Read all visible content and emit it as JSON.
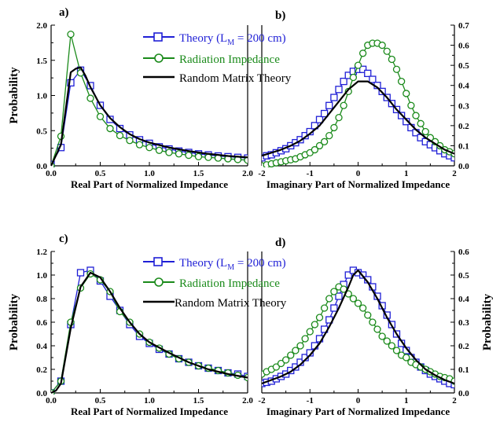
{
  "chart_data": [
    {
      "type": "line",
      "panel_label": "a)",
      "xlabel": "Real Part of Normalized Impedance",
      "ylabel": "Probability",
      "xlim": [
        0,
        2
      ],
      "ylim": [
        0,
        2
      ],
      "xticks": [
        "0.0",
        "0.5",
        "1.0",
        "1.5",
        "2.0"
      ],
      "yticks": [
        "0.0",
        "0.5",
        "1.0",
        "1.5",
        "2.0"
      ],
      "yaxis_side": "left",
      "series": [
        {
          "name": "Theory (LM = 200 cm)",
          "color": "#1f1fd6",
          "marker": "square",
          "x": [
            0,
            0.1,
            0.2,
            0.3,
            0.4,
            0.5,
            0.6,
            0.7,
            0.8,
            0.9,
            1.0,
            1.1,
            1.2,
            1.3,
            1.4,
            1.5,
            1.6,
            1.7,
            1.8,
            1.9,
            2.0
          ],
          "y": [
            0.02,
            0.26,
            1.18,
            1.36,
            1.14,
            0.86,
            0.66,
            0.53,
            0.44,
            0.37,
            0.32,
            0.27,
            0.24,
            0.21,
            0.19,
            0.17,
            0.155,
            0.14,
            0.13,
            0.12,
            0.11
          ]
        },
        {
          "name": "Radiation Impedance",
          "color": "#1a8a1a",
          "marker": "circle",
          "x": [
            0,
            0.1,
            0.2,
            0.3,
            0.4,
            0.5,
            0.6,
            0.7,
            0.8,
            0.9,
            1.0,
            1.1,
            1.2,
            1.3,
            1.4,
            1.5,
            1.6,
            1.7,
            1.8,
            1.9,
            2.0
          ],
          "y": [
            0.0,
            0.42,
            1.87,
            1.32,
            0.96,
            0.7,
            0.53,
            0.43,
            0.36,
            0.3,
            0.26,
            0.22,
            0.19,
            0.17,
            0.15,
            0.13,
            0.12,
            0.11,
            0.1,
            0.09,
            0.08
          ]
        },
        {
          "name": "Random Matrix Theory",
          "color": "#000000",
          "marker": "none",
          "x": [
            0,
            0.1,
            0.2,
            0.25,
            0.3,
            0.35,
            0.4,
            0.5,
            0.6,
            0.7,
            0.8,
            0.9,
            1.0,
            1.2,
            1.4,
            1.6,
            1.8,
            2.0
          ],
          "y": [
            0.0,
            0.3,
            1.33,
            1.38,
            1.4,
            1.28,
            1.12,
            0.86,
            0.68,
            0.55,
            0.45,
            0.38,
            0.33,
            0.26,
            0.21,
            0.17,
            0.14,
            0.12
          ]
        }
      ]
    },
    {
      "type": "line",
      "panel_label": "b)",
      "xlabel": "Imaginary Part of Normalized Impedance",
      "ylabel": "",
      "xlim": [
        -2,
        2
      ],
      "ylim": [
        0,
        0.7
      ],
      "xticks": [
        "-2",
        "-1",
        "0",
        "1",
        "2"
      ],
      "yticks": [
        "0.0",
        "0.1",
        "0.2",
        "0.3",
        "0.4",
        "0.5",
        "0.6",
        "0.7"
      ],
      "yaxis_side": "right",
      "series": [
        {
          "name": "Theory (LM = 200 cm)",
          "color": "#1f1fd6",
          "marker": "square",
          "x": [
            -2,
            -1.9,
            -1.8,
            -1.7,
            -1.6,
            -1.5,
            -1.4,
            -1.3,
            -1.2,
            -1.1,
            -1.0,
            -0.9,
            -0.8,
            -0.7,
            -0.6,
            -0.5,
            -0.4,
            -0.3,
            -0.2,
            -0.1,
            0,
            0.1,
            0.2,
            0.3,
            0.4,
            0.5,
            0.6,
            0.7,
            0.8,
            0.9,
            1.0,
            1.1,
            1.2,
            1.3,
            1.4,
            1.5,
            1.6,
            1.7,
            1.8,
            1.9,
            2.0
          ],
          "y": [
            0.04,
            0.05,
            0.055,
            0.065,
            0.075,
            0.085,
            0.1,
            0.115,
            0.13,
            0.15,
            0.17,
            0.2,
            0.23,
            0.26,
            0.3,
            0.34,
            0.38,
            0.42,
            0.45,
            0.47,
            0.48,
            0.48,
            0.46,
            0.43,
            0.4,
            0.37,
            0.34,
            0.31,
            0.28,
            0.25,
            0.22,
            0.19,
            0.165,
            0.14,
            0.12,
            0.105,
            0.09,
            0.075,
            0.06,
            0.05,
            0.04
          ]
        },
        {
          "name": "Radiation Impedance",
          "color": "#1a8a1a",
          "marker": "circle",
          "x": [
            -2,
            -1.9,
            -1.8,
            -1.7,
            -1.6,
            -1.5,
            -1.4,
            -1.3,
            -1.2,
            -1.1,
            -1.0,
            -0.9,
            -0.8,
            -0.7,
            -0.6,
            -0.5,
            -0.4,
            -0.3,
            -0.2,
            -0.1,
            0,
            0.1,
            0.2,
            0.3,
            0.4,
            0.5,
            0.6,
            0.7,
            0.8,
            0.9,
            1.0,
            1.1,
            1.2,
            1.3,
            1.4,
            1.5,
            1.6,
            1.7,
            1.8,
            1.9,
            2.0
          ],
          "y": [
            0.0,
            0.005,
            0.01,
            0.015,
            0.02,
            0.025,
            0.03,
            0.035,
            0.045,
            0.055,
            0.065,
            0.08,
            0.1,
            0.12,
            0.15,
            0.19,
            0.24,
            0.3,
            0.37,
            0.44,
            0.5,
            0.56,
            0.6,
            0.61,
            0.61,
            0.6,
            0.57,
            0.53,
            0.48,
            0.42,
            0.36,
            0.3,
            0.25,
            0.21,
            0.17,
            0.14,
            0.12,
            0.1,
            0.08,
            0.07,
            0.06
          ]
        },
        {
          "name": "Random Matrix Theory",
          "color": "#000000",
          "marker": "none",
          "x": [
            -2,
            -1.8,
            -1.6,
            -1.4,
            -1.2,
            -1.0,
            -0.8,
            -0.6,
            -0.4,
            -0.2,
            0,
            0.2,
            0.4,
            0.6,
            0.8,
            1.0,
            1.2,
            1.4,
            1.6,
            1.8,
            2.0
          ],
          "y": [
            0.05,
            0.065,
            0.08,
            0.1,
            0.125,
            0.16,
            0.2,
            0.26,
            0.32,
            0.38,
            0.42,
            0.42,
            0.39,
            0.34,
            0.28,
            0.23,
            0.18,
            0.14,
            0.11,
            0.08,
            0.06
          ]
        }
      ]
    },
    {
      "type": "line",
      "panel_label": "c)",
      "xlabel": "Real Part of Normalized Impedance",
      "ylabel": "Probability",
      "xlim": [
        0,
        2
      ],
      "ylim": [
        0,
        1.2
      ],
      "xticks": [
        "0.0",
        "0.5",
        "1.0",
        "1.5",
        "2.0"
      ],
      "yticks": [
        "0.0",
        "0.2",
        "0.4",
        "0.6",
        "0.8",
        "1.0",
        "1.2"
      ],
      "yaxis_side": "left",
      "series": [
        {
          "name": "Theory (LM = 200 cm)",
          "color": "#1f1fd6",
          "marker": "square",
          "x": [
            0,
            0.1,
            0.2,
            0.3,
            0.4,
            0.5,
            0.6,
            0.7,
            0.8,
            0.9,
            1.0,
            1.1,
            1.2,
            1.3,
            1.4,
            1.5,
            1.6,
            1.7,
            1.8,
            1.9,
            2.0
          ],
          "y": [
            0.0,
            0.1,
            0.58,
            1.02,
            1.04,
            0.95,
            0.82,
            0.7,
            0.58,
            0.48,
            0.42,
            0.37,
            0.33,
            0.29,
            0.26,
            0.23,
            0.21,
            0.19,
            0.17,
            0.16,
            0.14
          ]
        },
        {
          "name": "Radiation Impedance",
          "color": "#1a8a1a",
          "marker": "circle",
          "x": [
            0,
            0.1,
            0.2,
            0.3,
            0.4,
            0.5,
            0.6,
            0.7,
            0.8,
            0.9,
            1.0,
            1.1,
            1.2,
            1.3,
            1.4,
            1.5,
            1.6,
            1.7,
            1.8,
            1.9,
            2.0
          ],
          "y": [
            0.0,
            0.1,
            0.6,
            0.89,
            1.01,
            0.96,
            0.86,
            0.69,
            0.6,
            0.5,
            0.43,
            0.38,
            0.33,
            0.29,
            0.26,
            0.23,
            0.21,
            0.19,
            0.17,
            0.15,
            0.13
          ]
        },
        {
          "name": "Random Matrix Theory",
          "color": "#000000",
          "marker": "none",
          "x": [
            0,
            0.05,
            0.1,
            0.2,
            0.3,
            0.4,
            0.5,
            0.6,
            0.7,
            0.8,
            0.9,
            1.0,
            1.2,
            1.4,
            1.6,
            1.8,
            2.0
          ],
          "y": [
            0.0,
            0.02,
            0.08,
            0.55,
            0.9,
            1.02,
            0.98,
            0.86,
            0.72,
            0.6,
            0.5,
            0.43,
            0.34,
            0.26,
            0.2,
            0.16,
            0.13
          ]
        }
      ]
    },
    {
      "type": "line",
      "panel_label": "d)",
      "xlabel": "Imaginary Part of Normalized Impedance",
      "ylabel": "Probability",
      "xlim": [
        -2,
        2
      ],
      "ylim": [
        0,
        0.6
      ],
      "xticks": [
        "-2",
        "-1",
        "0",
        "1",
        "2"
      ],
      "yticks": [
        "0.0",
        "0.1",
        "0.2",
        "0.3",
        "0.4",
        "0.5",
        "0.6"
      ],
      "yaxis_side": "right",
      "series": [
        {
          "name": "Theory (LM = 200 cm)",
          "color": "#1f1fd6",
          "marker": "square",
          "x": [
            -2,
            -1.9,
            -1.8,
            -1.7,
            -1.6,
            -1.5,
            -1.4,
            -1.3,
            -1.2,
            -1.1,
            -1.0,
            -0.9,
            -0.8,
            -0.7,
            -0.6,
            -0.5,
            -0.4,
            -0.3,
            -0.2,
            -0.1,
            0,
            0.1,
            0.2,
            0.3,
            0.4,
            0.5,
            0.6,
            0.7,
            0.8,
            0.9,
            1.0,
            1.1,
            1.2,
            1.3,
            1.4,
            1.5,
            1.6,
            1.7,
            1.8,
            1.9,
            2.0
          ],
          "y": [
            0.04,
            0.045,
            0.05,
            0.06,
            0.07,
            0.08,
            0.095,
            0.11,
            0.13,
            0.15,
            0.17,
            0.2,
            0.23,
            0.27,
            0.31,
            0.36,
            0.41,
            0.46,
            0.5,
            0.52,
            0.51,
            0.5,
            0.48,
            0.45,
            0.41,
            0.37,
            0.33,
            0.29,
            0.25,
            0.21,
            0.18,
            0.15,
            0.13,
            0.11,
            0.095,
            0.08,
            0.07,
            0.06,
            0.05,
            0.04,
            0.035
          ]
        },
        {
          "name": "Radiation Impedance",
          "color": "#1a8a1a",
          "marker": "circle",
          "x": [
            -2,
            -1.9,
            -1.8,
            -1.7,
            -1.6,
            -1.5,
            -1.4,
            -1.3,
            -1.2,
            -1.1,
            -1.0,
            -0.9,
            -0.8,
            -0.7,
            -0.6,
            -0.5,
            -0.4,
            -0.3,
            -0.2,
            -0.1,
            0,
            0.1,
            0.2,
            0.3,
            0.4,
            0.5,
            0.6,
            0.7,
            0.8,
            0.9,
            1.0,
            1.1,
            1.2,
            1.3,
            1.4,
            1.5,
            1.6,
            1.7,
            1.8,
            1.9,
            2.0
          ],
          "y": [
            0.08,
            0.09,
            0.1,
            0.11,
            0.125,
            0.14,
            0.16,
            0.18,
            0.2,
            0.23,
            0.26,
            0.29,
            0.32,
            0.36,
            0.4,
            0.43,
            0.45,
            0.44,
            0.42,
            0.4,
            0.38,
            0.36,
            0.33,
            0.3,
            0.27,
            0.24,
            0.22,
            0.2,
            0.18,
            0.16,
            0.15,
            0.13,
            0.12,
            0.11,
            0.1,
            0.09,
            0.08,
            0.07,
            0.065,
            0.06,
            0.05
          ]
        },
        {
          "name": "Random Matrix Theory",
          "color": "#000000",
          "marker": "none",
          "x": [
            -2,
            -1.8,
            -1.6,
            -1.4,
            -1.2,
            -1.0,
            -0.8,
            -0.6,
            -0.4,
            -0.2,
            -0.1,
            0,
            0.2,
            0.4,
            0.6,
            0.8,
            1.0,
            1.2,
            1.4,
            1.6,
            1.8,
            2.0
          ],
          "y": [
            0.04,
            0.055,
            0.07,
            0.09,
            0.12,
            0.16,
            0.21,
            0.28,
            0.36,
            0.45,
            0.5,
            0.52,
            0.47,
            0.4,
            0.32,
            0.25,
            0.19,
            0.14,
            0.1,
            0.075,
            0.055,
            0.04
          ]
        }
      ]
    }
  ],
  "legend": {
    "theory_label": "Theory (L",
    "theory_subscript": "M",
    "theory_suffix": " = 200 cm)",
    "radiation_label": "Radiation Impedance",
    "rmt_label": "Random Matrix Theory"
  }
}
